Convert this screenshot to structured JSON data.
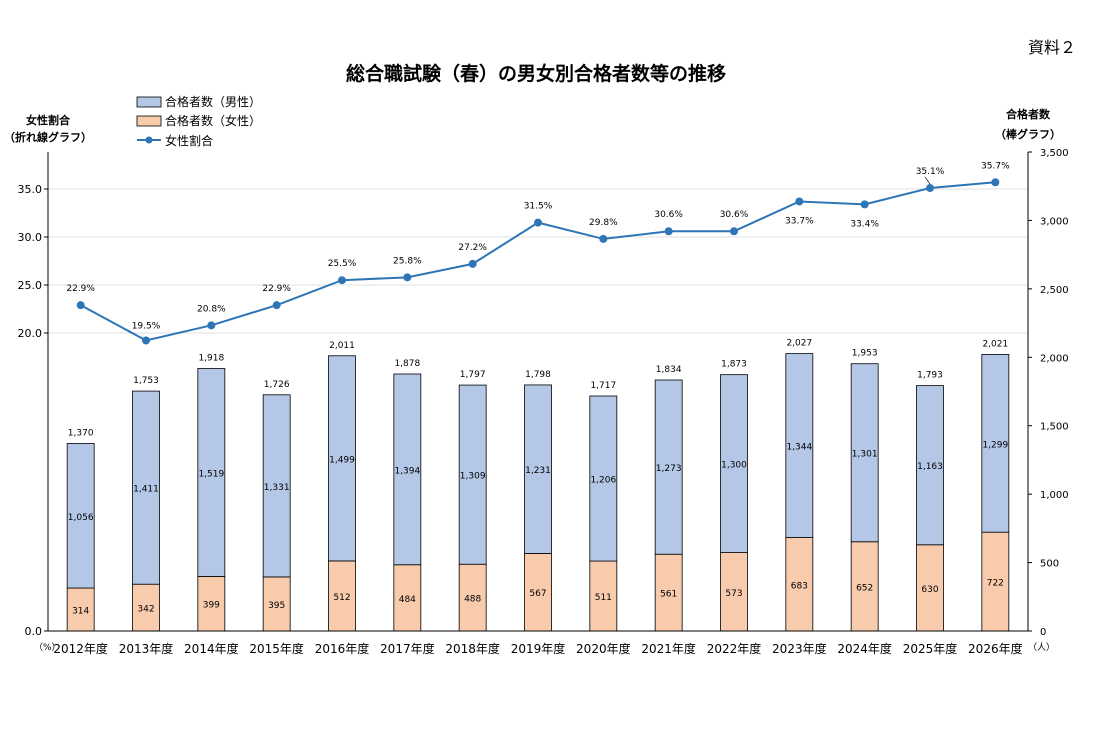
{
  "doc_label": "資料２",
  "chart_data": {
    "type": "bar+line",
    "title": "総合職試験（春）の男女別合格者数等の推移",
    "left_axis_title": [
      "女性割合",
      "（折れ線グラフ）"
    ],
    "right_axis_title": [
      "合格者数",
      "（棒グラフ）"
    ],
    "left_unit": "（%）",
    "right_unit": "（人）",
    "legend": [
      "合格者数（男性）",
      "合格者数（女性）",
      "女性割合"
    ],
    "categories": [
      "2012年度",
      "2013年度",
      "2014年度",
      "2015年度",
      "2016年度",
      "2017年度",
      "2018年度",
      "2019年度",
      "2020年度",
      "2021年度",
      "2022年度",
      "2023年度",
      "2024年度",
      "2025年度",
      "2026年度"
    ],
    "male": [
      1056,
      1411,
      1519,
      1331,
      1499,
      1394,
      1309,
      1231,
      1206,
      1273,
      1300,
      1344,
      1301,
      1163,
      1299
    ],
    "female": [
      314,
      342,
      399,
      395,
      512,
      484,
      488,
      567,
      511,
      561,
      573,
      683,
      652,
      630,
      722
    ],
    "total": [
      1370,
      1753,
      1918,
      1726,
      2011,
      1878,
      1797,
      1798,
      1717,
      1834,
      1873,
      2027,
      1953,
      1793,
      2021
    ],
    "male_labels": [
      "1,056",
      "1,411",
      "1,519",
      "1,331",
      "1,499",
      "1,394",
      "1,309",
      "1,231",
      "1,206",
      "1,273",
      "1,300",
      "1,344",
      "1,301",
      "1,163",
      "1,299"
    ],
    "total_labels": [
      "1,370",
      "1,753",
      "1,918",
      "1,726",
      "2,011",
      "1,878",
      "1,797",
      "1,798",
      "1,717",
      "1,834",
      "1,873",
      "2,027",
      "1,953",
      "1,793",
      "2,021"
    ],
    "ratio": [
      22.9,
      19.5,
      20.8,
      22.9,
      25.5,
      25.8,
      27.2,
      31.5,
      29.8,
      30.6,
      30.6,
      33.7,
      33.4,
      35.1,
      35.7
    ],
    "ratio_labels": [
      "22.9%",
      "19.5%",
      "20.8%",
      "22.9%",
      "25.5%",
      "25.8%",
      "27.2%",
      "31.5%",
      "29.8%",
      "30.6%",
      "30.6%",
      "33.7%",
      "33.4%",
      "35.1%",
      "35.7%"
    ],
    "right_ticks": [
      "0",
      "500",
      "1,000",
      "1,500",
      "2,000",
      "2,500",
      "3,000",
      "3,500"
    ],
    "left_ticks": [
      "0.0",
      "20.0",
      "25.0",
      "30.0",
      "35.0"
    ],
    "left_tick_values": [
      0,
      20,
      25,
      30,
      35
    ],
    "right_ylim": [
      0,
      3500
    ],
    "colors": {
      "male": "#b4c7e7",
      "female": "#f8cbad",
      "line": "#2e75b6",
      "bar_edge": "#000000",
      "grid": "#d9d9d9"
    }
  }
}
